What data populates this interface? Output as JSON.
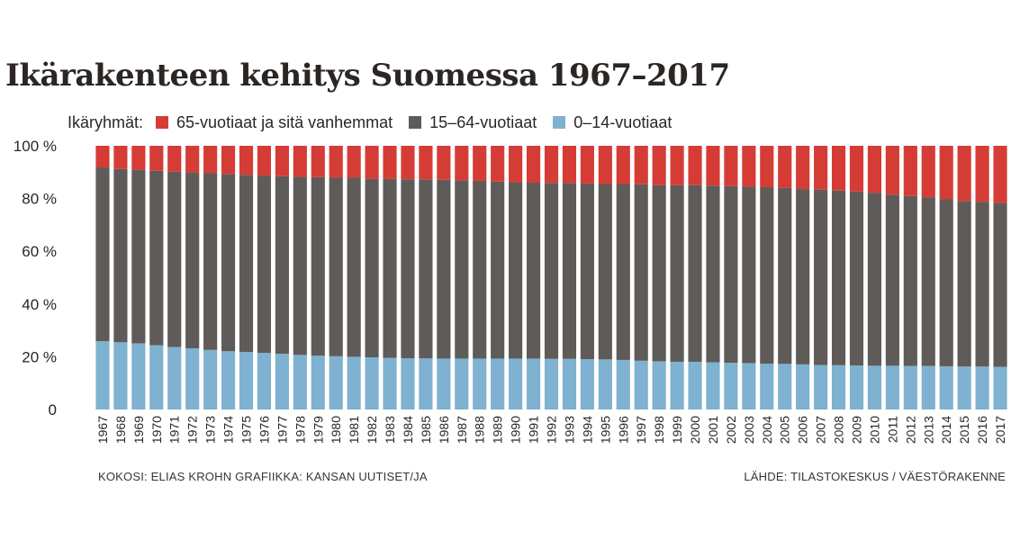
{
  "title": "Ikärakenteen kehitys Suomessa 1967–2017",
  "legend": {
    "heading": "Ikäryhmät:",
    "items": [
      {
        "label": "65-vuotiaat ja sitä vanhemmat",
        "color": "#d63c36"
      },
      {
        "label": "15–64-vuotiaat",
        "color": "#5f5b58"
      },
      {
        "label": "0–14-vuotiaat",
        "color": "#7fb1d0"
      }
    ]
  },
  "footer": {
    "credits": "KOKOSI: ELIAS KROHN  GRAFIIKKA: KANSAN UUTISET/JA",
    "source": "LÄHDE: TILASTOKESKUS / VÄESTÖRAKENNE"
  },
  "chart_data": {
    "type": "bar",
    "stacked": true,
    "categories": [
      "1967",
      "1968",
      "1969",
      "1970",
      "1971",
      "1972",
      "1973",
      "1974",
      "1975",
      "1976",
      "1977",
      "1978",
      "1979",
      "1980",
      "1981",
      "1982",
      "1983",
      "1984",
      "1985",
      "1986",
      "1987",
      "1988",
      "1989",
      "1990",
      "1991",
      "1992",
      "1993",
      "1994",
      "1995",
      "1996",
      "1997",
      "1998",
      "1999",
      "2000",
      "2001",
      "2002",
      "2003",
      "2004",
      "2005",
      "2006",
      "2007",
      "2008",
      "2009",
      "2010",
      "2011",
      "2012",
      "2013",
      "2014",
      "2015",
      "2016",
      "2017"
    ],
    "series": [
      {
        "name": "0–14-vuotiaat",
        "color": "#7fb1d0",
        "values": [
          25.9,
          25.5,
          25.1,
          24.4,
          23.7,
          23.2,
          22.6,
          22.1,
          21.8,
          21.5,
          21.1,
          20.7,
          20.4,
          20.2,
          20.0,
          19.8,
          19.6,
          19.4,
          19.4,
          19.3,
          19.3,
          19.3,
          19.3,
          19.3,
          19.3,
          19.2,
          19.2,
          19.1,
          19.0,
          18.8,
          18.5,
          18.3,
          18.1,
          18.1,
          17.9,
          17.7,
          17.6,
          17.4,
          17.3,
          17.1,
          16.9,
          16.8,
          16.7,
          16.6,
          16.6,
          16.5,
          16.5,
          16.4,
          16.3,
          16.3,
          16.2
        ]
      },
      {
        "name": "15–64-vuotiaat",
        "color": "#5f5b58",
        "values": [
          65.9,
          65.7,
          65.8,
          66.1,
          66.5,
          66.7,
          67.0,
          67.2,
          67.2,
          67.2,
          67.4,
          67.5,
          67.7,
          67.7,
          67.9,
          67.7,
          67.8,
          67.9,
          67.9,
          67.8,
          67.6,
          67.4,
          67.1,
          66.9,
          66.7,
          66.7,
          66.7,
          66.6,
          66.5,
          66.7,
          66.9,
          66.8,
          67.0,
          67.0,
          67.0,
          67.0,
          66.9,
          66.9,
          66.7,
          66.5,
          66.5,
          66.2,
          66.0,
          65.6,
          64.9,
          64.5,
          64.0,
          63.3,
          62.8,
          62.4,
          62.1
        ]
      },
      {
        "name": "65-vuotiaat ja sitä vanhemmat",
        "color": "#d63c36",
        "values": [
          8.2,
          8.8,
          9.1,
          9.5,
          9.8,
          10.1,
          10.4,
          10.7,
          11.0,
          11.3,
          11.5,
          11.8,
          11.9,
          12.1,
          12.1,
          12.5,
          12.6,
          12.7,
          12.7,
          12.9,
          13.1,
          13.3,
          13.6,
          13.8,
          14.0,
          14.1,
          14.1,
          14.3,
          14.5,
          14.5,
          14.6,
          14.9,
          14.9,
          14.9,
          15.1,
          15.3,
          15.5,
          15.7,
          16.0,
          16.4,
          16.6,
          17.0,
          17.3,
          17.8,
          18.5,
          19.0,
          19.5,
          20.3,
          20.9,
          21.3,
          21.7
        ]
      }
    ],
    "yticks": [
      "0",
      "20 %",
      "40 %",
      "60 %",
      "80 %",
      "100 %"
    ],
    "ylim": [
      0,
      100
    ],
    "grid": false,
    "legend_position": "top"
  }
}
